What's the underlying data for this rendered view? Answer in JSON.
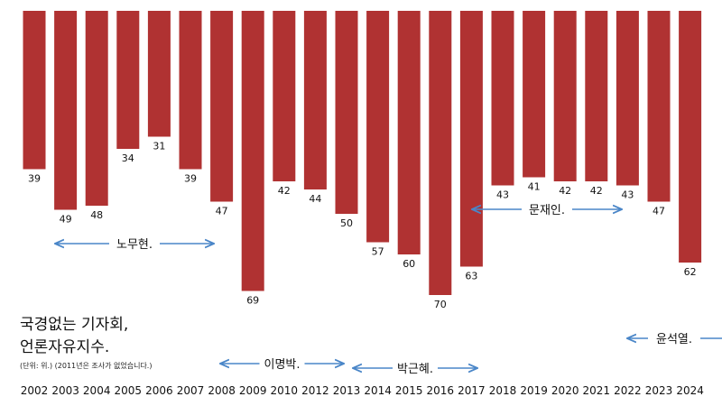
{
  "chart_data": {
    "type": "bar",
    "title_lines": [
      "국경없는 기자회,",
      "언론자유지수."
    ],
    "note": "(단위: 위.) (2011년은 조사가 없었습니다.)",
    "categories": [
      "2002",
      "2003",
      "2004",
      "2005",
      "2006",
      "2007",
      "2008",
      "2009",
      "2010",
      "2012",
      "2013",
      "2014",
      "2015",
      "2016",
      "2017",
      "2018",
      "2019",
      "2020",
      "2021",
      "2022",
      "2023",
      "2024"
    ],
    "values": [
      39,
      49,
      48,
      34,
      31,
      39,
      47,
      69,
      42,
      44,
      50,
      57,
      60,
      70,
      63,
      43,
      41,
      42,
      42,
      43,
      47,
      62
    ],
    "bar_color": "#b03232",
    "arrow_color": "#4a86c8",
    "eras": [
      {
        "label": "노무현."
      },
      {
        "label": "이명박."
      },
      {
        "label": "박근혜."
      },
      {
        "label": "문재인."
      },
      {
        "label": "윤석열."
      }
    ]
  }
}
